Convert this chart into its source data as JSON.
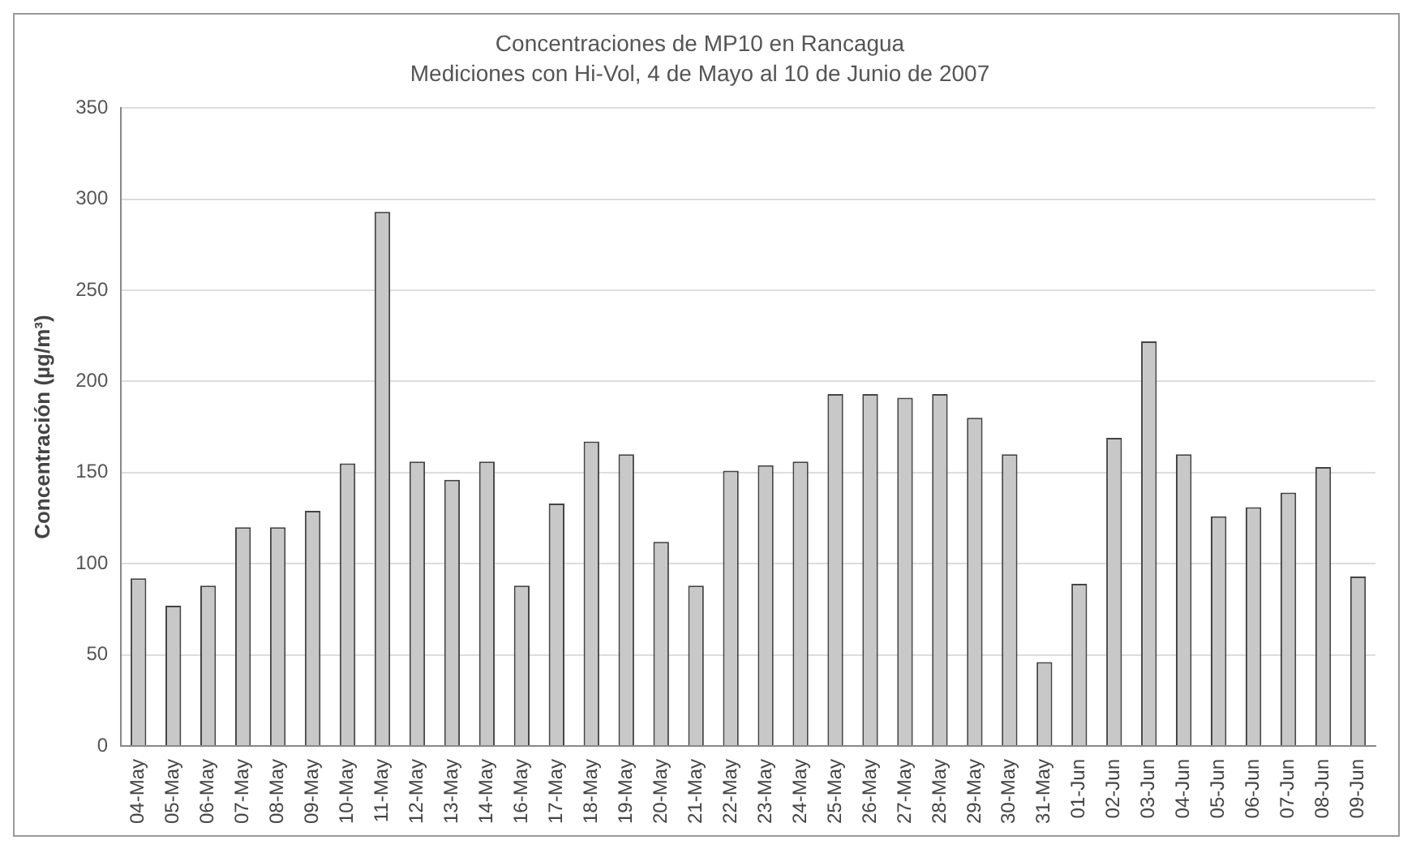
{
  "chart_data": {
    "type": "bar",
    "title": "Concentraciones de MP10 en Rancagua",
    "subtitle": "Mediciones con Hi-Vol, 4 de Mayo al 10 de Junio de 2007",
    "ylabel": "Concentración (µg/m³)",
    "categories": [
      "04-May",
      "05-May",
      "06-May",
      "07-May",
      "08-May",
      "09-May",
      "10-May",
      "11-May",
      "12-May",
      "13-May",
      "14-May",
      "16-May",
      "17-May",
      "18-May",
      "19-May",
      "20-May",
      "21-May",
      "22-May",
      "23-May",
      "24-May",
      "25-May",
      "26-May",
      "27-May",
      "28-May",
      "29-May",
      "30-May",
      "31-May",
      "01-Jun",
      "02-Jun",
      "03-Jun",
      "04-Jun",
      "05-Jun",
      "06-Jun",
      "07-Jun",
      "08-Jun",
      "09-Jun"
    ],
    "values": [
      92,
      77,
      88,
      120,
      120,
      129,
      155,
      293,
      156,
      146,
      156,
      88,
      133,
      167,
      160,
      112,
      88,
      151,
      154,
      156,
      193,
      193,
      191,
      193,
      180,
      160,
      46,
      89,
      169,
      222,
      160,
      126,
      131,
      139,
      153,
      93
    ],
    "color": "#c8c8c8",
    "ylim": [
      0,
      350
    ],
    "yticks": [
      0,
      50,
      100,
      150,
      200,
      250,
      300,
      350
    ],
    "grid": "y",
    "legend": false
  }
}
